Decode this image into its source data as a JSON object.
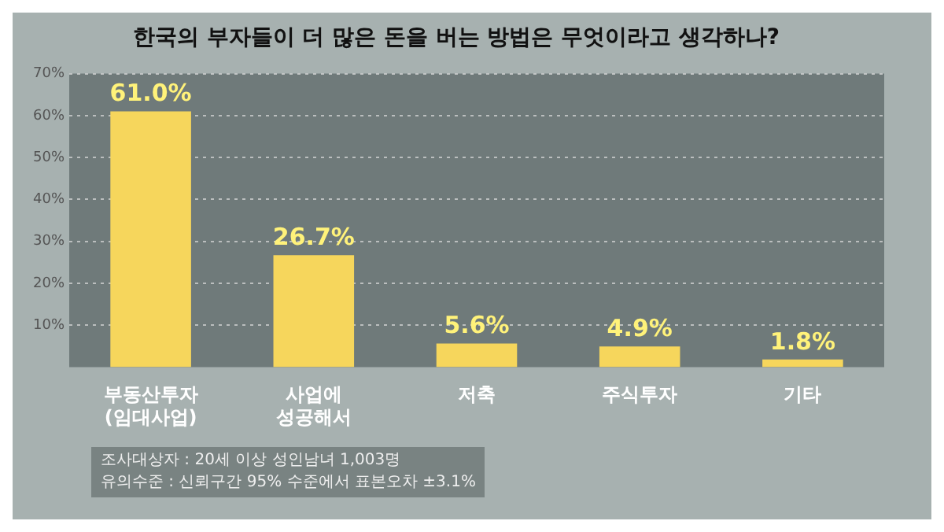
{
  "chart_data": {
    "type": "bar",
    "title": "한국의 부자들이 더 많은 돈을 버는 방법은 무엇이라고 생각하나?",
    "categories": [
      "부동산투자\n(임대사업)",
      "사업에\n성공해서",
      "저축",
      "주식투자",
      "기타"
    ],
    "values": [
      61.0,
      26.7,
      5.6,
      4.9,
      1.8
    ],
    "value_labels": [
      "61.0%",
      "26.7%",
      "5.6%",
      "4.9%",
      "1.8%"
    ],
    "color": "#f6d65c",
    "ylim": [
      0,
      70
    ],
    "yticks": [
      {
        "value": 10,
        "label": "10%"
      },
      {
        "value": 20,
        "label": "20%"
      },
      {
        "value": 30,
        "label": "30%"
      },
      {
        "value": 40,
        "label": "40%"
      },
      {
        "value": 50,
        "label": "50%"
      },
      {
        "value": 60,
        "label": "60%"
      },
      {
        "value": 70,
        "label": "70%"
      }
    ],
    "grid": "y",
    "legend": false,
    "annotations": [
      "조사대상자 : 20세 이상 성인남녀 1,003명",
      "유의수준 : 신뢰구간 95% 수준에서 표본오차 ±3.1%"
    ]
  }
}
